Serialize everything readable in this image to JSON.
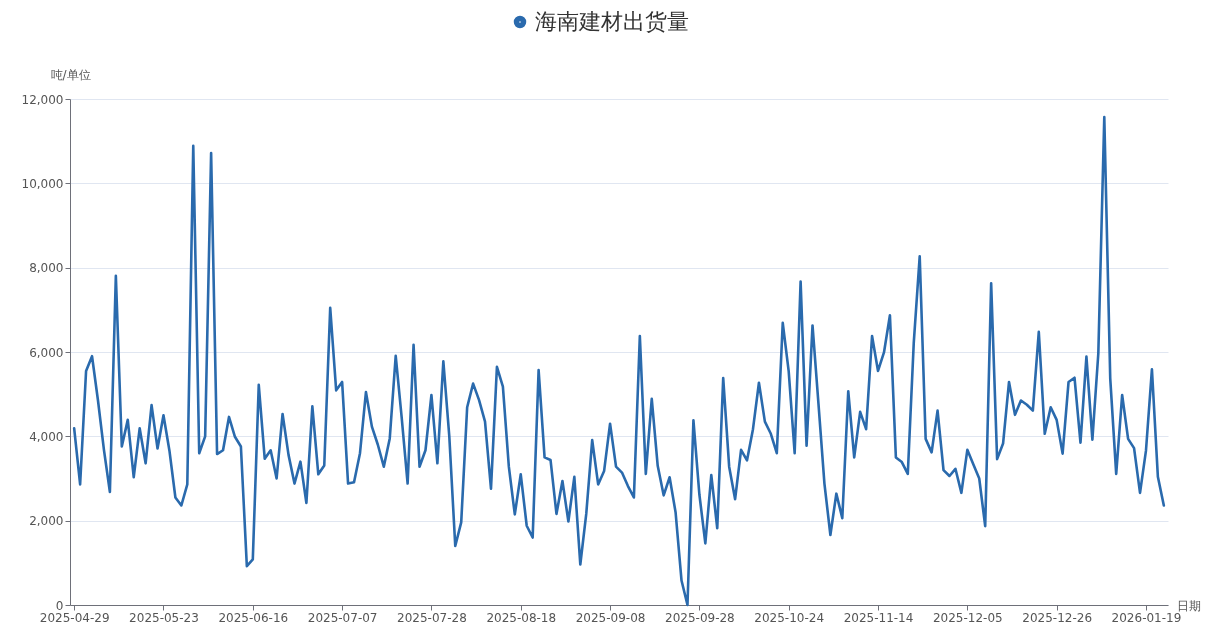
{
  "chart_data": {
    "type": "line",
    "xlabel": "日期",
    "ylabel": "吨/单位",
    "categories": [
      "2025-04-29",
      null,
      null,
      null,
      null,
      null,
      null,
      null,
      null,
      null,
      null,
      null,
      null,
      null,
      null,
      "2025-05-23",
      null,
      null,
      null,
      null,
      null,
      null,
      null,
      null,
      null,
      null,
      null,
      null,
      null,
      null,
      "2025-06-16",
      null,
      null,
      null,
      null,
      null,
      null,
      null,
      null,
      null,
      null,
      null,
      null,
      null,
      null,
      "2025-07-07",
      null,
      null,
      null,
      null,
      null,
      null,
      null,
      null,
      null,
      null,
      null,
      null,
      null,
      null,
      "2025-07-28",
      null,
      null,
      null,
      null,
      null,
      null,
      null,
      null,
      null,
      null,
      null,
      null,
      null,
      null,
      "2025-08-18",
      null,
      null,
      null,
      null,
      null,
      null,
      null,
      null,
      null,
      null,
      null,
      null,
      null,
      null,
      "2025-09-08",
      null,
      null,
      null,
      null,
      null,
      null,
      null,
      null,
      null,
      null,
      null,
      null,
      null,
      null,
      "2025-09-28",
      null,
      null,
      null,
      null,
      null,
      null,
      null,
      null,
      null,
      null,
      null,
      null,
      null,
      null,
      "2025-10-24",
      null,
      null,
      null,
      null,
      null,
      null,
      null,
      null,
      null,
      null,
      null,
      null,
      null,
      null,
      "2025-11-14",
      null,
      null,
      null,
      null,
      null,
      null,
      null,
      null,
      null,
      null,
      null,
      null,
      null,
      null,
      "2025-12-05",
      null,
      null,
      null,
      null,
      null,
      null,
      null,
      null,
      null,
      null,
      null,
      null,
      null,
      null,
      "2025-12-26",
      null,
      null,
      null,
      null,
      null,
      null,
      null,
      null,
      null,
      null,
      null,
      null,
      null,
      null,
      "2026-01-19",
      null,
      null,
      null
    ],
    "series": [
      {
        "name": "海南建材出货量",
        "color": "#2a6aad",
        "values": [
          4190,
          2860,
          5550,
          5900,
          4850,
          3680,
          2680,
          7810,
          3760,
          4390,
          3030,
          4190,
          3360,
          4740,
          3710,
          4500,
          3660,
          2550,
          2360,
          2860,
          10890,
          3600,
          4000,
          10720,
          3580,
          3670,
          4460,
          3990,
          3760,
          920,
          1080,
          5220,
          3470,
          3670,
          3000,
          4530,
          3560,
          2880,
          3400,
          2420,
          4710,
          3100,
          3310,
          7050,
          5090,
          5290,
          2880,
          2910,
          3600,
          5050,
          4230,
          3800,
          3280,
          3950,
          5910,
          4450,
          2880,
          6170,
          3280,
          3670,
          4980,
          3360,
          5780,
          4000,
          1400,
          1960,
          4690,
          5250,
          4860,
          4350,
          2760,
          5650,
          5180,
          3280,
          2150,
          3100,
          1880,
          1600,
          5570,
          3500,
          3440,
          2160,
          2940,
          1980,
          3040,
          960,
          2160,
          3910,
          2860,
          3180,
          4300,
          3280,
          3140,
          2820,
          2550,
          6380,
          3110,
          4890,
          3300,
          2600,
          3030,
          2200,
          580,
          0,
          4380,
          2620,
          1460,
          3080,
          1820,
          5380,
          3280,
          2510,
          3680,
          3430,
          4170,
          5270,
          4350,
          4060,
          3600,
          6690,
          5540,
          3600,
          7670,
          3780,
          6630,
          4770,
          2880,
          1660,
          2640,
          2060,
          5070,
          3500,
          4580,
          4170,
          6380,
          5550,
          5990,
          6870,
          3500,
          3390,
          3110,
          6210,
          8270,
          3940,
          3620,
          4610,
          3200,
          3060,
          3230,
          2660,
          3680,
          3340,
          3000,
          1870,
          7630,
          3460,
          3830,
          5290,
          4510,
          4850,
          4750,
          4610,
          6480,
          4060,
          4690,
          4390,
          3590,
          5290,
          5390,
          3850,
          5890,
          3920,
          5970,
          11570,
          5370,
          3110,
          4980,
          3940,
          3720,
          2660,
          3660,
          5590,
          3040,
          2360
        ]
      }
    ],
    "ylim": [
      0,
      12000
    ],
    "yticks": [
      0,
      {
        "value": 2000,
        "label": "2,000"
      },
      {
        "value": 4000,
        "label": "4,000"
      },
      {
        "value": 6000,
        "label": "6,000"
      },
      {
        "value": 8000,
        "label": "8,000"
      },
      {
        "value": 10000,
        "label": "10,000"
      },
      {
        "value": 12000,
        "label": "12,000"
      }
    ],
    "grid": "y",
    "legend": "top"
  }
}
